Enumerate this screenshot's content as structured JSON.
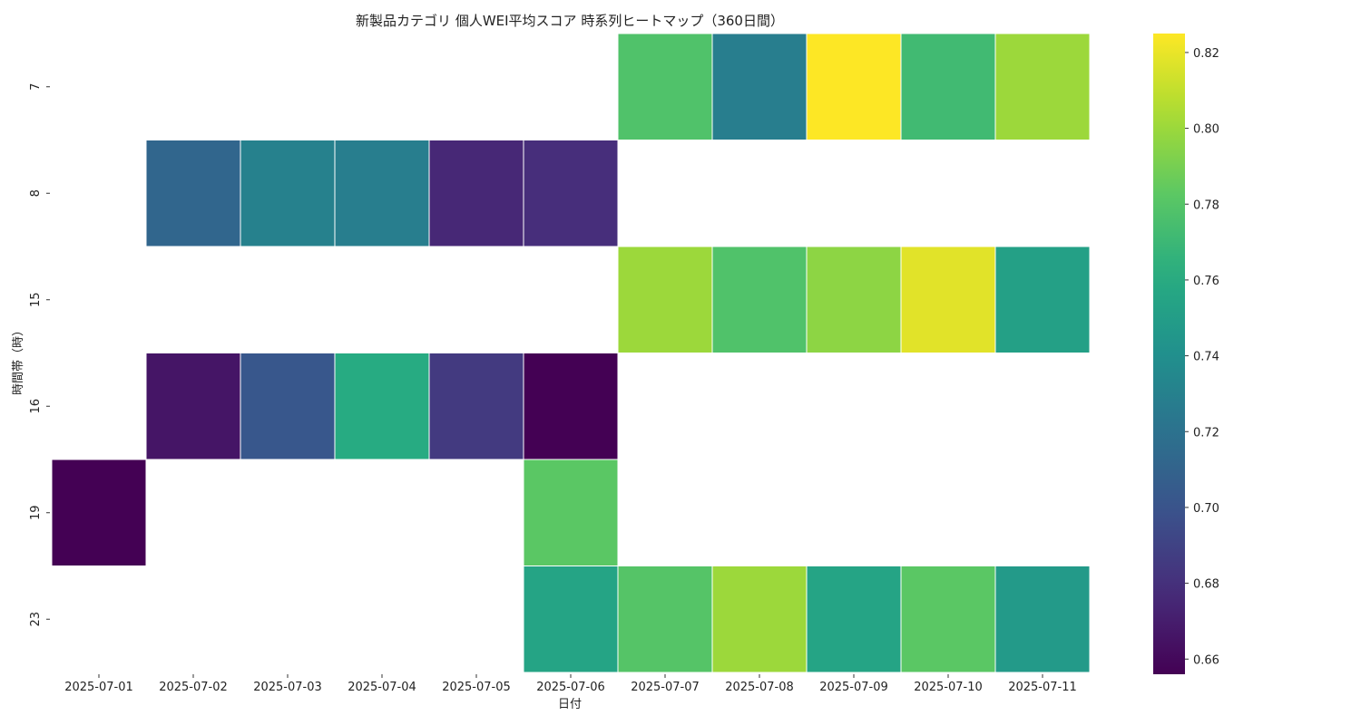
{
  "chart_data": {
    "type": "heatmap",
    "title": "新製品カテゴリ 個人WEI平均スコア 時系列ヒートマップ（360日間）",
    "xlabel": "日付",
    "ylabel": "時間帯（時）",
    "x": [
      "2025-07-01",
      "2025-07-02",
      "2025-07-03",
      "2025-07-04",
      "2025-07-05",
      "2025-07-06",
      "2025-07-07",
      "2025-07-08",
      "2025-07-09",
      "2025-07-10",
      "2025-07-11"
    ],
    "y": [
      "7",
      "8",
      "15",
      "16",
      "19",
      "23"
    ],
    "values": [
      [
        null,
        null,
        null,
        null,
        null,
        null,
        0.778,
        0.728,
        0.825,
        0.772,
        0.8
      ],
      [
        null,
        0.712,
        0.73,
        0.728,
        0.675,
        0.678,
        null,
        null,
        null,
        null,
        null
      ],
      [
        null,
        null,
        null,
        null,
        null,
        null,
        0.8,
        0.778,
        0.796,
        0.818,
        0.752
      ],
      [
        null,
        0.666,
        0.702,
        0.76,
        0.685,
        0.656,
        null,
        null,
        null,
        null,
        null
      ],
      [
        0.656,
        null,
        null,
        null,
        null,
        0.782,
        null,
        null,
        null,
        null,
        null
      ],
      [
        null,
        null,
        null,
        null,
        null,
        0.755,
        0.78,
        0.8,
        0.755,
        0.782,
        0.748
      ]
    ],
    "colormap": "viridis",
    "colorbar": {
      "range": [
        0.656,
        0.825
      ],
      "ticks": [
        "0.66",
        "0.68",
        "0.70",
        "0.72",
        "0.74",
        "0.76",
        "0.78",
        "0.80",
        "0.82"
      ]
    }
  }
}
